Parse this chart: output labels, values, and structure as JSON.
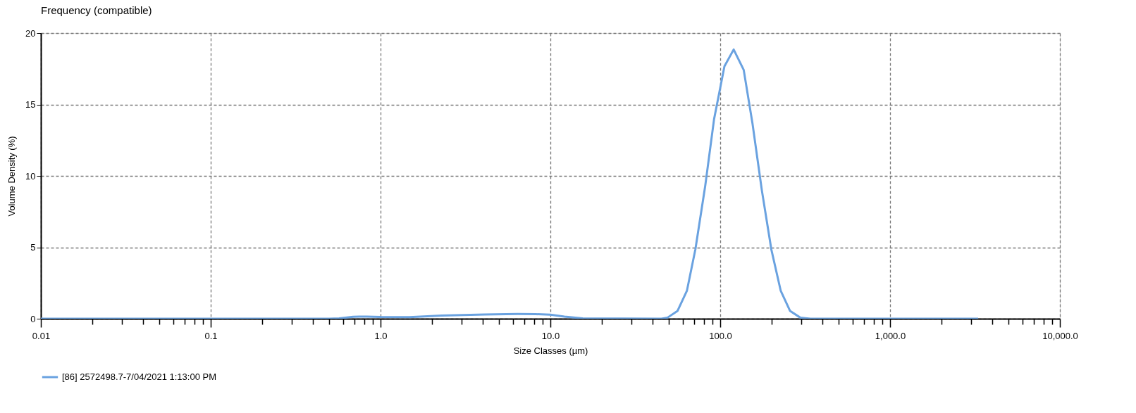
{
  "chart_data": {
    "type": "line",
    "title": "Frequency (compatible)",
    "xlabel": "Size Classes (µm)",
    "ylabel": "Volume Density (%)",
    "x": [
      0.01,
      0.5,
      0.57,
      0.69,
      0.83,
      1.0,
      1.48,
      2.3,
      4.1,
      6.4,
      8.2,
      10,
      12.1,
      15.5,
      45,
      49,
      56,
      63.7,
      71.4,
      81.6,
      92,
      105.9,
      120,
      137.5,
      155,
      176,
      200,
      227,
      258,
      296,
      340,
      3300
    ],
    "series": [
      {
        "name": "[86] 2572498.7-7/04/2021 1:13:00 PM",
        "color": "#6aa2e0",
        "values": [
          0,
          0,
          0.02,
          0.14,
          0.15,
          0.12,
          0.11,
          0.22,
          0.3,
          0.33,
          0.32,
          0.28,
          0.15,
          0.02,
          0,
          0.08,
          0.54,
          1.97,
          4.85,
          9.3,
          13.97,
          17.67,
          18.85,
          17.42,
          13.64,
          8.96,
          4.85,
          1.97,
          0.54,
          0.08,
          0,
          0
        ]
      }
    ],
    "log": "x",
    "xlim": [
      0.01,
      10000
    ],
    "ylim": [
      0,
      20
    ],
    "xticks": [
      {
        "value": 0.01,
        "label": "0.01"
      },
      {
        "value": 0.02,
        "label": null
      },
      {
        "value": 0.03,
        "label": null
      },
      {
        "value": 0.04,
        "label": null
      },
      {
        "value": 0.05,
        "label": null
      },
      {
        "value": 0.06,
        "label": null
      },
      {
        "value": 0.07,
        "label": null
      },
      {
        "value": 0.08,
        "label": null
      },
      {
        "value": 0.09,
        "label": null
      },
      {
        "value": 0.1,
        "label": "0.1"
      },
      {
        "value": 0.2,
        "label": null
      },
      {
        "value": 0.3,
        "label": null
      },
      {
        "value": 0.4,
        "label": null
      },
      {
        "value": 0.5,
        "label": null
      },
      {
        "value": 0.6,
        "label": null
      },
      {
        "value": 0.7,
        "label": null
      },
      {
        "value": 0.8,
        "label": null
      },
      {
        "value": 0.9,
        "label": null
      },
      {
        "value": 1,
        "label": "1.0"
      },
      {
        "value": 2,
        "label": null
      },
      {
        "value": 3,
        "label": null
      },
      {
        "value": 4,
        "label": null
      },
      {
        "value": 5,
        "label": null
      },
      {
        "value": 6,
        "label": null
      },
      {
        "value": 7,
        "label": null
      },
      {
        "value": 8,
        "label": null
      },
      {
        "value": 9,
        "label": null
      },
      {
        "value": 10,
        "label": "10.0"
      },
      {
        "value": 20,
        "label": null
      },
      {
        "value": 30,
        "label": null
      },
      {
        "value": 40,
        "label": null
      },
      {
        "value": 50,
        "label": null
      },
      {
        "value": 60,
        "label": null
      },
      {
        "value": 70,
        "label": null
      },
      {
        "value": 80,
        "label": null
      },
      {
        "value": 90,
        "label": null
      },
      {
        "value": 100,
        "label": "100.0"
      },
      {
        "value": 200,
        "label": null
      },
      {
        "value": 300,
        "label": null
      },
      {
        "value": 400,
        "label": null
      },
      {
        "value": 500,
        "label": null
      },
      {
        "value": 600,
        "label": null
      },
      {
        "value": 700,
        "label": null
      },
      {
        "value": 800,
        "label": null
      },
      {
        "value": 900,
        "label": null
      },
      {
        "value": 1000,
        "label": "1,000.0"
      },
      {
        "value": 2000,
        "label": null
      },
      {
        "value": 3000,
        "label": null
      },
      {
        "value": 4000,
        "label": null
      },
      {
        "value": 5000,
        "label": null
      },
      {
        "value": 6000,
        "label": null
      },
      {
        "value": 7000,
        "label": null
      },
      {
        "value": 8000,
        "label": null
      },
      {
        "value": 9000,
        "label": null
      },
      {
        "value": 10000,
        "label": "10,000.0"
      }
    ],
    "yticks": [
      0,
      5,
      10,
      15,
      20
    ],
    "grid": true,
    "legend": "bottom"
  }
}
